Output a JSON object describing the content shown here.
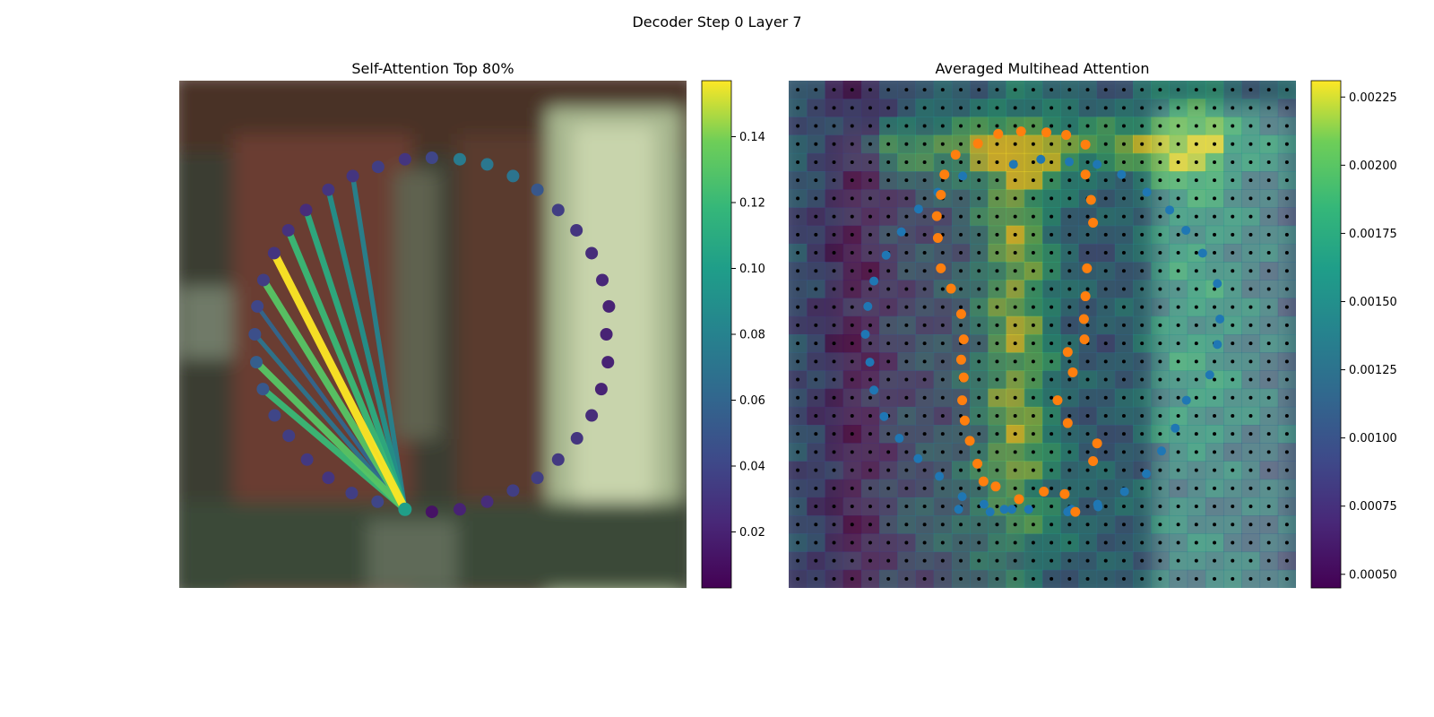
{
  "figure": {
    "suptitle": "Decoder Step 0 Layer 7"
  },
  "chart_data": [
    {
      "type": "scatter",
      "title": "Self-Attention Top 80%",
      "description_of_background": "blurred photo region (dark green / brown wall, pale object on right)",
      "colormap": "viridis",
      "colorbar": {
        "range": [
          0.003,
          0.157
        ],
        "ticks": [
          "0.02",
          "0.04",
          "0.06",
          "0.08",
          "0.10",
          "0.12",
          "0.14"
        ],
        "tick_values": [
          0.02,
          0.04,
          0.06,
          0.08,
          0.1,
          0.12,
          0.14
        ]
      },
      "image_extent": [
        0,
        1,
        0,
        1
      ],
      "query_point": {
        "x": 0.445,
        "y": 0.155,
        "value": 0.1
      },
      "points": [
        {
          "x": 0.498,
          "y": 0.848,
          "v": 0.04
        },
        {
          "x": 0.553,
          "y": 0.845,
          "v": 0.075
        },
        {
          "x": 0.607,
          "y": 0.835,
          "v": 0.072
        },
        {
          "x": 0.658,
          "y": 0.812,
          "v": 0.07
        },
        {
          "x": 0.706,
          "y": 0.785,
          "v": 0.05
        },
        {
          "x": 0.747,
          "y": 0.745,
          "v": 0.035
        },
        {
          "x": 0.783,
          "y": 0.705,
          "v": 0.03
        },
        {
          "x": 0.813,
          "y": 0.66,
          "v": 0.025
        },
        {
          "x": 0.834,
          "y": 0.607,
          "v": 0.022
        },
        {
          "x": 0.847,
          "y": 0.555,
          "v": 0.02
        },
        {
          "x": 0.842,
          "y": 0.5,
          "v": 0.02
        },
        {
          "x": 0.845,
          "y": 0.445,
          "v": 0.02
        },
        {
          "x": 0.832,
          "y": 0.392,
          "v": 0.02
        },
        {
          "x": 0.813,
          "y": 0.34,
          "v": 0.025
        },
        {
          "x": 0.784,
          "y": 0.295,
          "v": 0.03
        },
        {
          "x": 0.747,
          "y": 0.253,
          "v": 0.032
        },
        {
          "x": 0.706,
          "y": 0.217,
          "v": 0.035
        },
        {
          "x": 0.658,
          "y": 0.192,
          "v": 0.035
        },
        {
          "x": 0.607,
          "y": 0.17,
          "v": 0.025
        },
        {
          "x": 0.553,
          "y": 0.155,
          "v": 0.02
        },
        {
          "x": 0.498,
          "y": 0.15,
          "v": 0.012
        },
        {
          "x": 0.391,
          "y": 0.17,
          "v": 0.04
        },
        {
          "x": 0.34,
          "y": 0.187,
          "v": 0.035
        },
        {
          "x": 0.294,
          "y": 0.217,
          "v": 0.03
        },
        {
          "x": 0.252,
          "y": 0.253,
          "v": 0.032
        },
        {
          "x": 0.216,
          "y": 0.3,
          "v": 0.035
        },
        {
          "x": 0.188,
          "y": 0.34,
          "v": 0.04
        },
        {
          "x": 0.165,
          "y": 0.392,
          "v": 0.05
        },
        {
          "x": 0.152,
          "y": 0.445,
          "v": 0.055
        },
        {
          "x": 0.149,
          "y": 0.5,
          "v": 0.045
        },
        {
          "x": 0.154,
          "y": 0.555,
          "v": 0.04
        },
        {
          "x": 0.166,
          "y": 0.607,
          "v": 0.035
        },
        {
          "x": 0.187,
          "y": 0.66,
          "v": 0.03
        },
        {
          "x": 0.215,
          "y": 0.705,
          "v": 0.028
        },
        {
          "x": 0.25,
          "y": 0.745,
          "v": 0.025
        },
        {
          "x": 0.294,
          "y": 0.785,
          "v": 0.03
        },
        {
          "x": 0.342,
          "y": 0.812,
          "v": 0.03
        },
        {
          "x": 0.392,
          "y": 0.83,
          "v": 0.035
        },
        {
          "x": 0.445,
          "y": 0.845,
          "v": 0.03
        }
      ],
      "attention_edges": [
        {
          "to_x": 0.165,
          "to_y": 0.392,
          "v": 0.12
        },
        {
          "to_x": 0.152,
          "to_y": 0.445,
          "v": 0.13
        },
        {
          "to_x": 0.149,
          "to_y": 0.5,
          "v": 0.07
        },
        {
          "to_x": 0.154,
          "to_y": 0.555,
          "v": 0.06
        },
        {
          "to_x": 0.166,
          "to_y": 0.607,
          "v": 0.13
        },
        {
          "to_x": 0.187,
          "to_y": 0.66,
          "v": 0.157
        },
        {
          "to_x": 0.215,
          "to_y": 0.705,
          "v": 0.12
        },
        {
          "to_x": 0.25,
          "to_y": 0.745,
          "v": 0.11
        },
        {
          "to_x": 0.294,
          "to_y": 0.785,
          "v": 0.09
        },
        {
          "to_x": 0.342,
          "to_y": 0.812,
          "v": 0.08
        }
      ]
    },
    {
      "type": "heatmap",
      "title": "Averaged Multihead Attention",
      "colormap": "viridis",
      "colorbar": {
        "range": [
          0.00045,
          0.00231
        ],
        "ticks": [
          "0.00050",
          "0.00075",
          "0.00100",
          "0.00125",
          "0.00150",
          "0.00175",
          "0.00200",
          "0.00225"
        ],
        "tick_values": [
          0.0005,
          0.00075,
          0.001,
          0.00125,
          0.0015,
          0.00175,
          0.002,
          0.00225
        ]
      },
      "grid_size": 28,
      "reference_points_color": "#ff7f0e",
      "sampling_points_color": "#1f77b4",
      "reference_points": [
        {
          "x": 0.413,
          "y": 0.895
        },
        {
          "x": 0.458,
          "y": 0.9
        },
        {
          "x": 0.508,
          "y": 0.898
        },
        {
          "x": 0.547,
          "y": 0.893
        },
        {
          "x": 0.585,
          "y": 0.874
        },
        {
          "x": 0.373,
          "y": 0.876
        },
        {
          "x": 0.329,
          "y": 0.854
        },
        {
          "x": 0.307,
          "y": 0.815
        },
        {
          "x": 0.3,
          "y": 0.775
        },
        {
          "x": 0.292,
          "y": 0.733
        },
        {
          "x": 0.294,
          "y": 0.69
        },
        {
          "x": 0.3,
          "y": 0.63
        },
        {
          "x": 0.32,
          "y": 0.59
        },
        {
          "x": 0.34,
          "y": 0.54
        },
        {
          "x": 0.345,
          "y": 0.49
        },
        {
          "x": 0.34,
          "y": 0.45
        },
        {
          "x": 0.345,
          "y": 0.415
        },
        {
          "x": 0.342,
          "y": 0.37
        },
        {
          "x": 0.347,
          "y": 0.33
        },
        {
          "x": 0.357,
          "y": 0.29
        },
        {
          "x": 0.372,
          "y": 0.245
        },
        {
          "x": 0.384,
          "y": 0.21
        },
        {
          "x": 0.408,
          "y": 0.2
        },
        {
          "x": 0.454,
          "y": 0.175
        },
        {
          "x": 0.503,
          "y": 0.19
        },
        {
          "x": 0.544,
          "y": 0.185
        },
        {
          "x": 0.565,
          "y": 0.15
        },
        {
          "x": 0.6,
          "y": 0.25
        },
        {
          "x": 0.608,
          "y": 0.285
        },
        {
          "x": 0.55,
          "y": 0.325
        },
        {
          "x": 0.53,
          "y": 0.37
        },
        {
          "x": 0.56,
          "y": 0.425
        },
        {
          "x": 0.55,
          "y": 0.465
        },
        {
          "x": 0.583,
          "y": 0.49
        },
        {
          "x": 0.582,
          "y": 0.53
        },
        {
          "x": 0.585,
          "y": 0.575
        },
        {
          "x": 0.588,
          "y": 0.63
        },
        {
          "x": 0.6,
          "y": 0.72
        },
        {
          "x": 0.596,
          "y": 0.765
        },
        {
          "x": 0.585,
          "y": 0.815
        }
      ],
      "sampling_points": [
        {
          "x": 0.335,
          "y": 0.155
        },
        {
          "x": 0.385,
          "y": 0.165
        },
        {
          "x": 0.425,
          "y": 0.155
        },
        {
          "x": 0.473,
          "y": 0.155
        },
        {
          "x": 0.557,
          "y": 0.155
        },
        {
          "x": 0.609,
          "y": 0.165
        },
        {
          "x": 0.662,
          "y": 0.19
        },
        {
          "x": 0.705,
          "y": 0.225
        },
        {
          "x": 0.735,
          "y": 0.27
        },
        {
          "x": 0.762,
          "y": 0.315
        },
        {
          "x": 0.784,
          "y": 0.37
        },
        {
          "x": 0.83,
          "y": 0.42
        },
        {
          "x": 0.845,
          "y": 0.48
        },
        {
          "x": 0.85,
          "y": 0.53
        },
        {
          "x": 0.845,
          "y": 0.6
        },
        {
          "x": 0.816,
          "y": 0.66
        },
        {
          "x": 0.783,
          "y": 0.705
        },
        {
          "x": 0.751,
          "y": 0.745
        },
        {
          "x": 0.706,
          "y": 0.78
        },
        {
          "x": 0.656,
          "y": 0.815
        },
        {
          "x": 0.608,
          "y": 0.835
        },
        {
          "x": 0.553,
          "y": 0.84
        },
        {
          "x": 0.497,
          "y": 0.845
        },
        {
          "x": 0.443,
          "y": 0.835
        },
        {
          "x": 0.343,
          "y": 0.812
        },
        {
          "x": 0.294,
          "y": 0.78
        },
        {
          "x": 0.256,
          "y": 0.747
        },
        {
          "x": 0.222,
          "y": 0.702
        },
        {
          "x": 0.192,
          "y": 0.656
        },
        {
          "x": 0.168,
          "y": 0.605
        },
        {
          "x": 0.156,
          "y": 0.555
        },
        {
          "x": 0.151,
          "y": 0.5
        },
        {
          "x": 0.16,
          "y": 0.445
        },
        {
          "x": 0.168,
          "y": 0.39
        },
        {
          "x": 0.188,
          "y": 0.338
        },
        {
          "x": 0.218,
          "y": 0.295
        },
        {
          "x": 0.255,
          "y": 0.255
        },
        {
          "x": 0.297,
          "y": 0.22
        },
        {
          "x": 0.342,
          "y": 0.18
        },
        {
          "x": 0.397,
          "y": 0.15
        },
        {
          "x": 0.55,
          "y": 0.15
        },
        {
          "x": 0.44,
          "y": 0.155
        },
        {
          "x": 0.61,
          "y": 0.16
        }
      ]
    }
  ]
}
